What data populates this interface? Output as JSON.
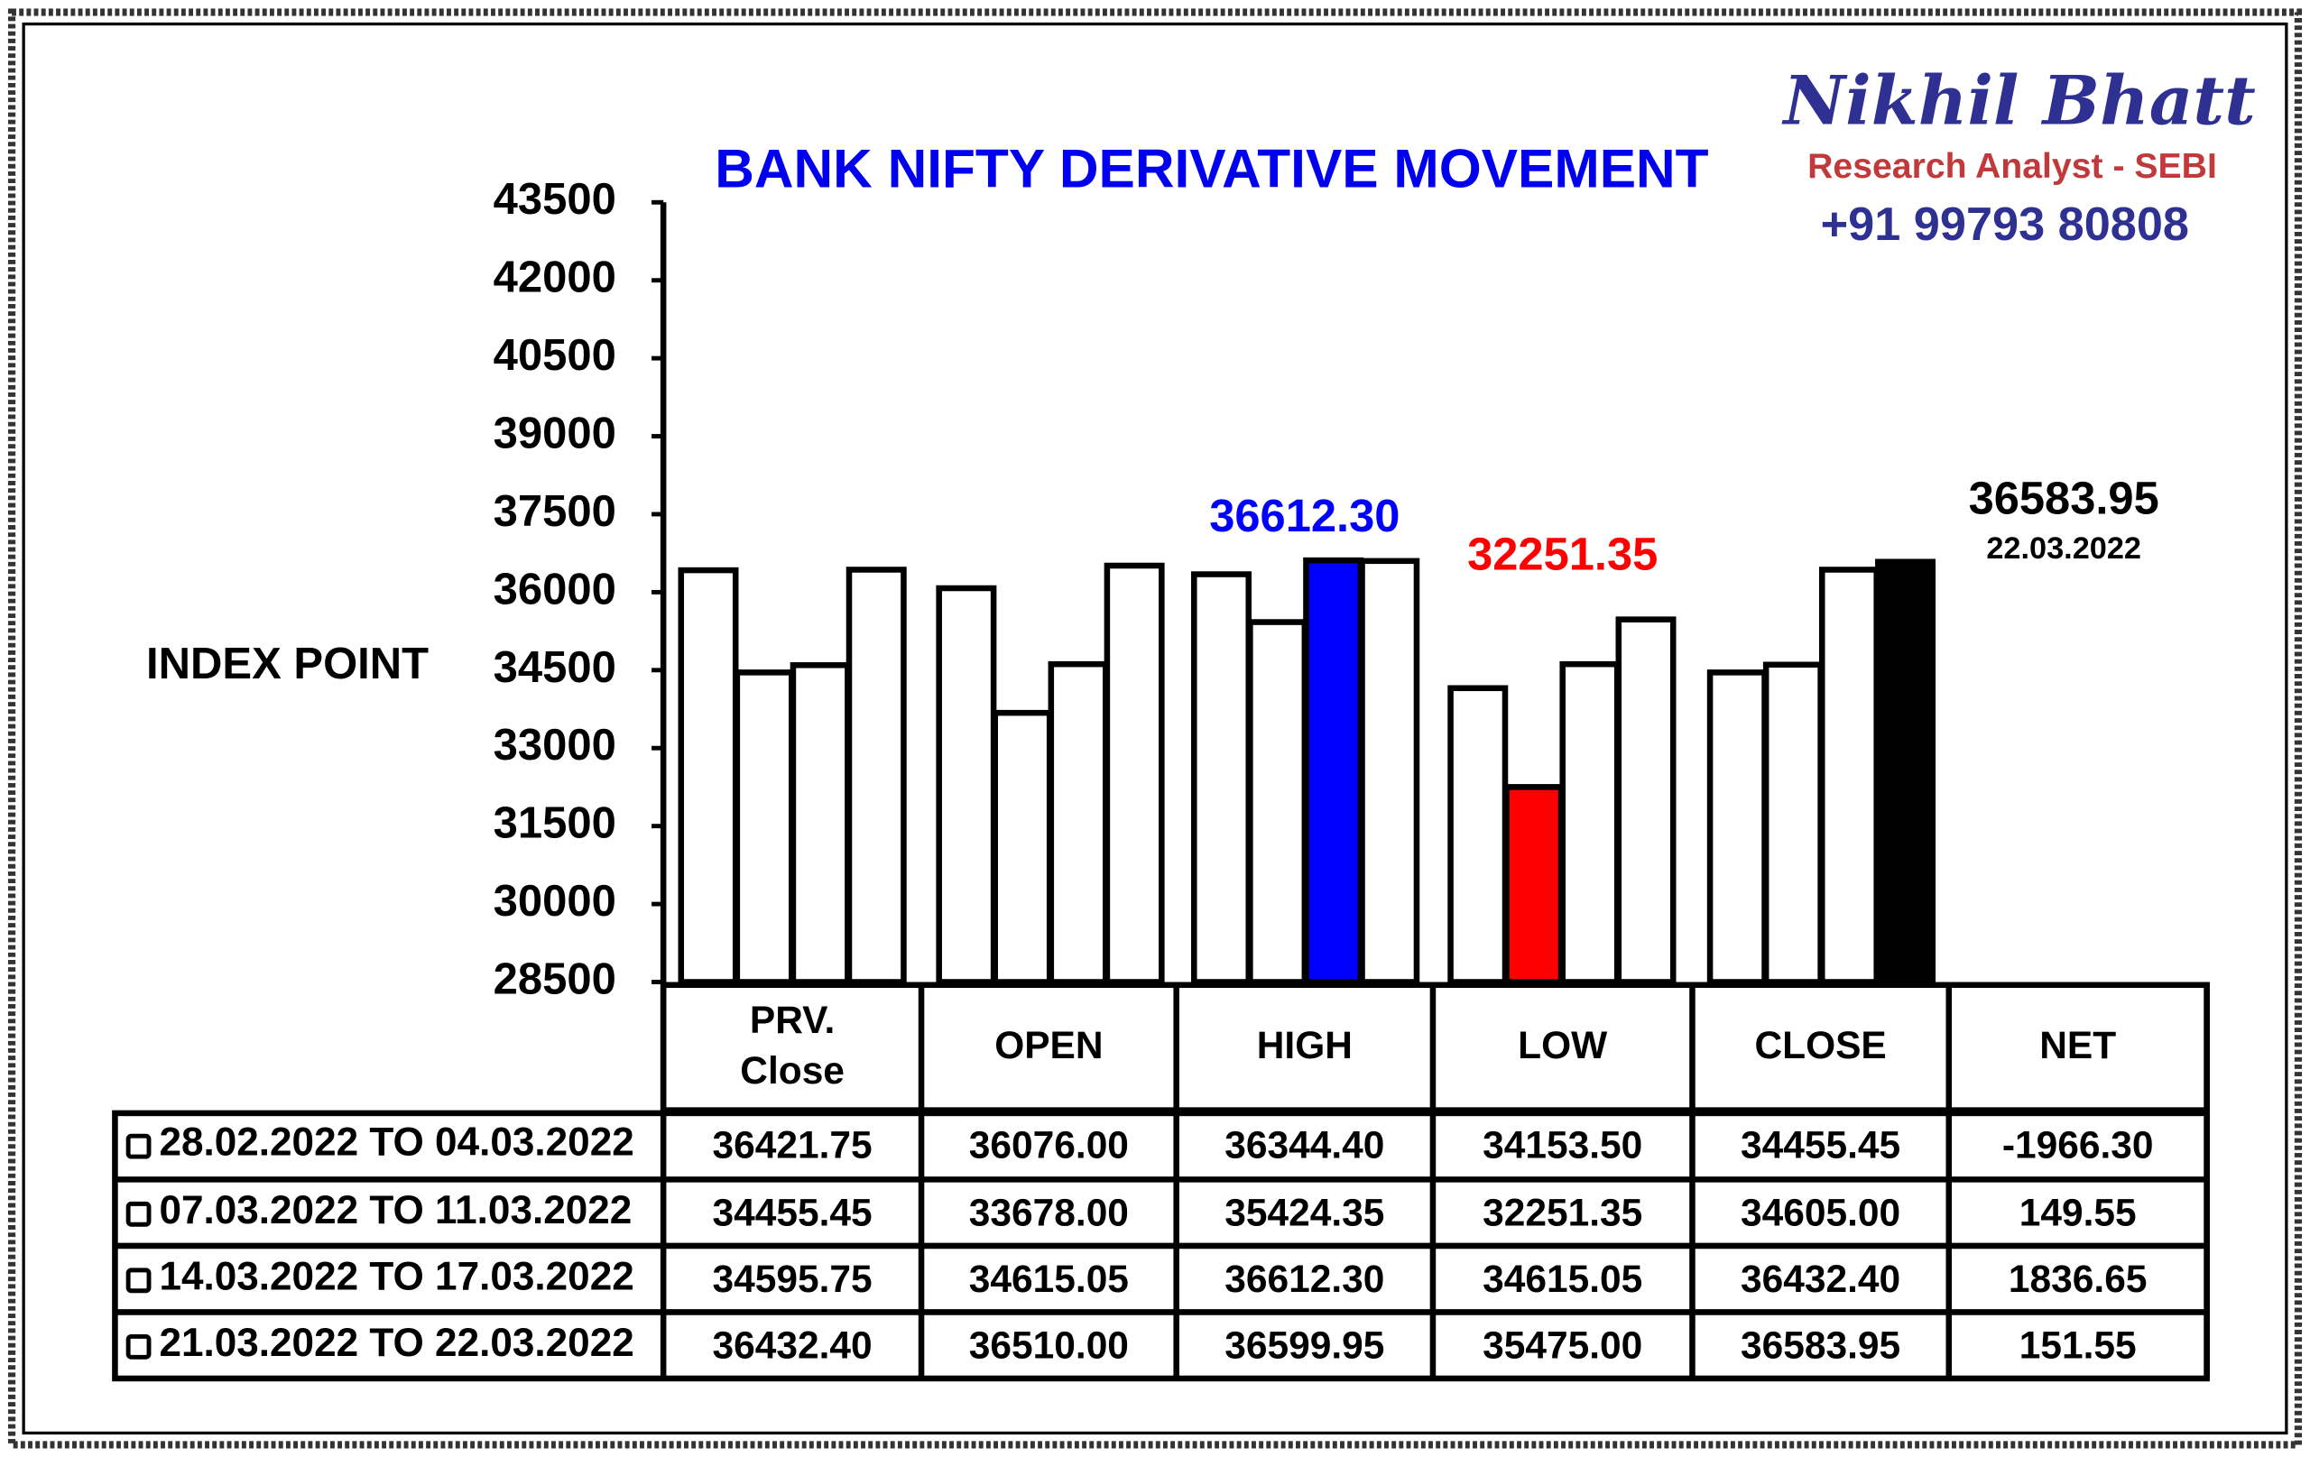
{
  "chart_data": {
    "type": "bar",
    "title": "BANK NIFTY DERIVATIVE MOVEMENT",
    "ylabel": "INDEX POINT",
    "categories": [
      "PRV. Close",
      "OPEN",
      "HIGH",
      "LOW",
      "CLOSE"
    ],
    "net_header": "NET",
    "ylim": [
      28500,
      43500
    ],
    "yticks": [
      28500,
      30000,
      31500,
      33000,
      34500,
      36000,
      37500,
      39000,
      40500,
      42000,
      43500
    ],
    "series": [
      {
        "name": "28.02.2022 TO 04.03.2022",
        "colors": [
          "#ffffff",
          "#ffffff",
          "#ffffff",
          "#ffffff",
          "#ffffff"
        ],
        "values": [
          36421.75,
          36076,
          36344.4,
          34153.5,
          34455.45
        ],
        "value_labels": [
          "36421.75",
          "36076.00",
          "36344.40",
          "34153.50",
          "34455.45"
        ],
        "net": {
          "value": -1966.3,
          "label": "-1966.30"
        }
      },
      {
        "name": "07.03.2022 TO 11.03.2022",
        "colors": [
          "#ffffff",
          "#ffffff",
          "#ffffff",
          "#ff0000",
          "#ffffff"
        ],
        "values": [
          34455.45,
          33678,
          35424.35,
          32251.35,
          34605
        ],
        "value_labels": [
          "34455.45",
          "33678.00",
          "35424.35",
          "32251.35",
          "34605.00"
        ],
        "net": {
          "value": 149.55,
          "label": "149.55"
        }
      },
      {
        "name": "14.03.2022 TO 17.03.2022",
        "colors": [
          "#ffffff",
          "#ffffff",
          "#0000ff",
          "#ffffff",
          "#ffffff"
        ],
        "values": [
          34595.75,
          34615.05,
          36612.3,
          34615.05,
          36432.4
        ],
        "value_labels": [
          "34595.75",
          "34615.05",
          "36612.30",
          "34615.05",
          "36432.40"
        ],
        "net": {
          "value": 1836.65,
          "label": "1836.65"
        }
      },
      {
        "name": "21.03.2022 TO 22.03.2022",
        "colors": [
          "#ffffff",
          "#ffffff",
          "#ffffff",
          "#ffffff",
          "#000000"
        ],
        "values": [
          36432.4,
          36510,
          36599.95,
          35475,
          36583.95
        ],
        "value_labels": [
          "36432.40",
          "36510.00",
          "36599.95",
          "35475.00",
          "36583.95"
        ],
        "net": {
          "value": 151.55,
          "label": "151.55"
        }
      }
    ],
    "annotations": [
      {
        "text": "36612.30",
        "color": "#0000ff"
      },
      {
        "text": "32251.35",
        "color": "#ff0000"
      },
      {
        "text": "36583.95",
        "color": "#000000"
      },
      {
        "text": "22.03.2022",
        "color": "#000000"
      }
    ]
  },
  "brand": {
    "name": "Nikhil Bhatt",
    "role": "Research Analyst - SEBI",
    "phone": "+91 99793 80808"
  }
}
